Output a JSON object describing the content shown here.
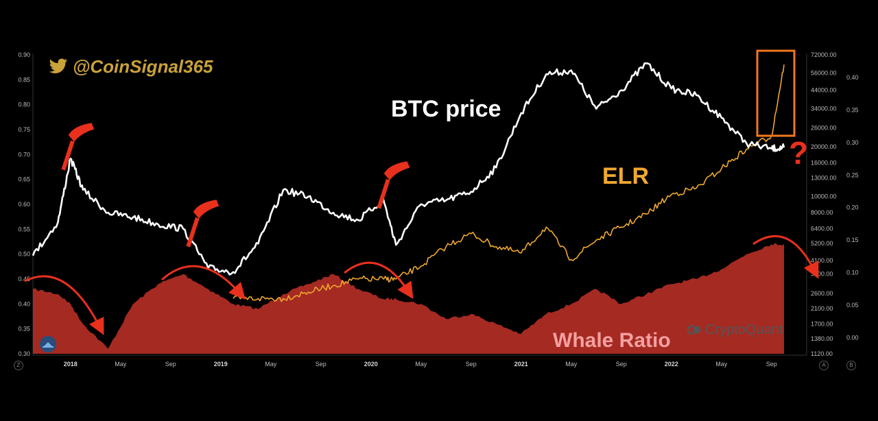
{
  "overlay": {
    "twitter_handle": "@CoinSignal365",
    "btc_label": "BTC price",
    "elr_label": "ELR",
    "whale_label": "Whale Ratio",
    "watermark": "CryptoQuant",
    "question_mark": "?"
  },
  "axis_handles": {
    "left": "Z",
    "right_a": "A",
    "right_b": "B"
  },
  "colors": {
    "background": "#000000",
    "btc": "#ffffff",
    "elr": "#f0a830",
    "whale": "#a52a22",
    "annotation": "#e8301c",
    "highlight": "#f07820",
    "twitter": "#c9a23a"
  },
  "chart_data": {
    "type": "line",
    "x": [
      "2017-10",
      "2017-12",
      "2018-01",
      "2018-02",
      "2018-04",
      "2018-06",
      "2018-08",
      "2018-10",
      "2018-12",
      "2019-02",
      "2019-04",
      "2019-06",
      "2019-08",
      "2019-10",
      "2019-12",
      "2020-02",
      "2020-03",
      "2020-05",
      "2020-07",
      "2020-09",
      "2020-11",
      "2021-01",
      "2021-03",
      "2021-05",
      "2021-07",
      "2021-09",
      "2021-11",
      "2022-01",
      "2022-03",
      "2022-05",
      "2022-07",
      "2022-09",
      "2022-10"
    ],
    "x_ticks": [
      "2018",
      "May",
      "Sep",
      "2019",
      "May",
      "Sep",
      "2020",
      "May",
      "Sep",
      "2021",
      "May",
      "Sep",
      "2022",
      "May",
      "Sep"
    ],
    "series": [
      {
        "name": "Whale Ratio",
        "axis": "left",
        "style": "area",
        "values": [
          0.43,
          0.42,
          0.4,
          0.36,
          0.31,
          0.4,
          0.44,
          0.46,
          0.43,
          0.4,
          0.39,
          0.42,
          0.44,
          0.46,
          0.43,
          0.41,
          0.41,
          0.4,
          0.37,
          0.38,
          0.36,
          0.34,
          0.38,
          0.4,
          0.43,
          0.4,
          0.42,
          0.44,
          0.45,
          0.47,
          0.5,
          0.52,
          0.52
        ]
      },
      {
        "name": "BTC price",
        "axis": "right_price",
        "style": "line",
        "values": [
          4400,
          7000,
          17000,
          11000,
          8000,
          7500,
          6800,
          6400,
          3700,
          3500,
          5200,
          11000,
          10000,
          8000,
          7200,
          9600,
          5100,
          9000,
          9500,
          10700,
          15000,
          32000,
          55000,
          58000,
          34000,
          44000,
          64000,
          45000,
          41000,
          30000,
          21000,
          19500,
          19800
        ]
      },
      {
        "name": "ELR",
        "axis": "right_ratio",
        "style": "line",
        "values": [
          null,
          null,
          null,
          null,
          null,
          null,
          null,
          null,
          null,
          0.06,
          0.06,
          0.06,
          0.07,
          0.08,
          0.09,
          0.09,
          0.09,
          0.11,
          0.14,
          0.16,
          0.14,
          0.13,
          0.17,
          0.12,
          0.15,
          0.17,
          0.19,
          0.22,
          0.23,
          0.26,
          0.29,
          0.31,
          0.42
        ]
      }
    ],
    "left_axis": {
      "ticks": [
        0.3,
        0.35,
        0.4,
        0.45,
        0.5,
        0.55,
        0.6,
        0.65,
        0.7,
        0.75,
        0.8,
        0.85,
        0.9
      ],
      "ylim": [
        0.3,
        0.9
      ]
    },
    "right_price_axis": {
      "scale": "log",
      "ticks": [
        1120,
        1380,
        1700,
        2100,
        2600,
        3400,
        4100,
        5200,
        6400,
        8000,
        10000,
        13000,
        16000,
        20000,
        26000,
        34000,
        44000,
        56000,
        72000
      ],
      "ylim": [
        1120,
        72000
      ]
    },
    "right_ratio_axis": {
      "ticks": [
        0.0,
        0.05,
        0.1,
        0.15,
        0.2,
        0.25,
        0.3,
        0.35,
        0.4
      ],
      "ylim": [
        -0.025,
        0.435
      ]
    }
  }
}
